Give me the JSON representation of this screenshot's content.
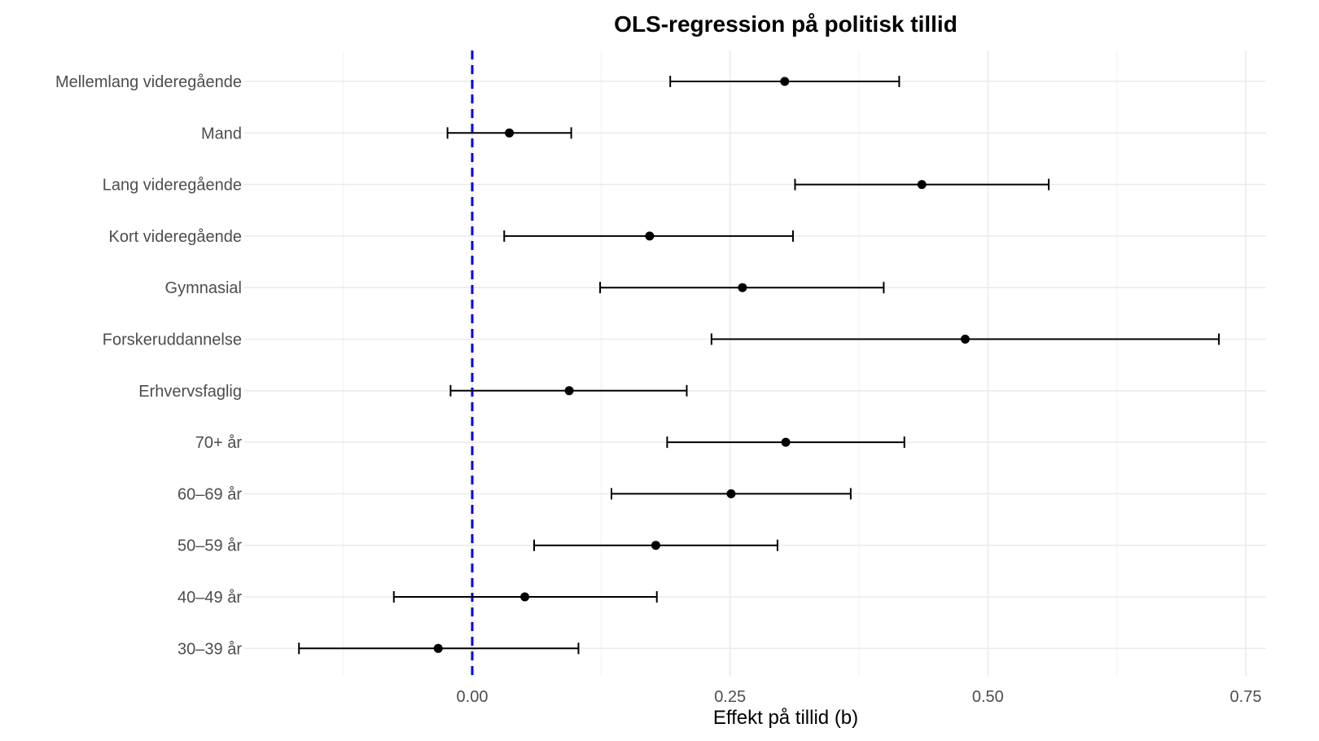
{
  "chart_data": {
    "type": "errorbar",
    "title": "OLS-regression på politisk tillid",
    "xlabel": "Effekt på tillid (b)",
    "ylabel": "",
    "xlim": [
      -0.25,
      0.77
    ],
    "x_ticks": [
      0.0,
      0.25,
      0.5,
      0.75
    ],
    "x_tick_labels": [
      "0.00",
      "0.25",
      "0.50",
      "0.75"
    ],
    "reference_line": {
      "x": 0,
      "style": "dashed",
      "color": "#0000e6"
    },
    "grid": true,
    "categories": [
      "Mellemlang videregående",
      "Mand",
      "Lang videregående",
      "Kort videregående",
      "Gymnasial",
      "Forskeruddannelse",
      "Erhvervsfaglig",
      "70+ år",
      "60–69 år",
      "50–59 år",
      "40–49 år",
      "30–39 år"
    ],
    "estimates": [
      0.303,
      0.036,
      0.436,
      0.172,
      0.262,
      0.478,
      0.094,
      0.304,
      0.251,
      0.178,
      0.051,
      -0.033
    ],
    "ci_low": [
      0.192,
      -0.024,
      0.313,
      0.031,
      0.124,
      0.232,
      -0.021,
      0.189,
      0.135,
      0.06,
      -0.076,
      -0.168
    ],
    "ci_high": [
      0.414,
      0.096,
      0.559,
      0.311,
      0.399,
      0.724,
      0.208,
      0.419,
      0.367,
      0.296,
      0.179,
      0.103
    ]
  }
}
